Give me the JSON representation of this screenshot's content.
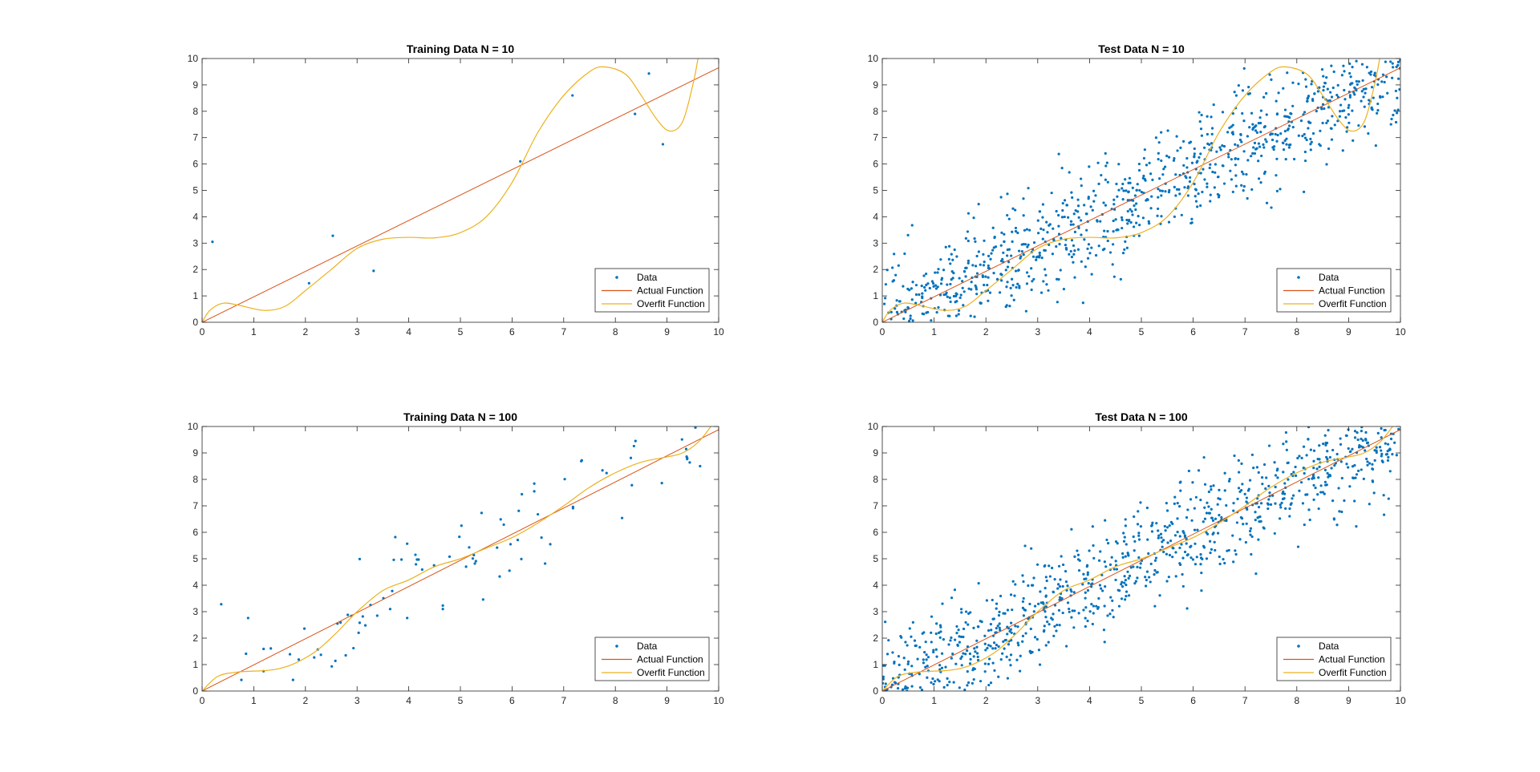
{
  "colors": {
    "data": "#0072BD",
    "actual": "#D95319",
    "overfit": "#EDB120",
    "axis": "#262626"
  },
  "legend_labels": [
    "Data",
    "Actual Function",
    "Overfit Function"
  ],
  "chart_data": [
    {
      "type": "scatter",
      "title": "Training Data N = 10",
      "xlim": [
        0,
        10
      ],
      "ylim": [
        0,
        10
      ],
      "xticks": [
        "0",
        "1",
        "2",
        "3",
        "4",
        "5",
        "6",
        "7",
        "8",
        "9",
        "10"
      ],
      "yticks": [
        "0",
        "1",
        "2",
        "3",
        "4",
        "5",
        "6",
        "7",
        "8",
        "9",
        "10"
      ],
      "legend_placement": "bottom-right",
      "actual_function": {
        "x": [
          0,
          10
        ],
        "y": [
          0,
          9.65
        ]
      },
      "overfit_function": {
        "x": [
          0,
          0.15,
          0.4,
          0.7,
          1.2,
          1.6,
          2,
          2.5,
          3,
          3.5,
          4,
          4.5,
          5,
          5.5,
          6,
          6.5,
          7,
          7.5,
          7.8,
          8.2,
          8.5,
          8.8,
          9.05,
          9.3,
          9.5,
          9.6
        ],
        "y": [
          0,
          0.45,
          0.72,
          0.65,
          0.45,
          0.6,
          1.2,
          2.0,
          2.8,
          3.15,
          3.22,
          3.2,
          3.4,
          4.0,
          5.3,
          7.2,
          8.6,
          9.5,
          9.68,
          9.4,
          8.6,
          7.7,
          7.25,
          7.6,
          9.0,
          10.0
        ]
      },
      "points": {
        "x": [
          0.2,
          2.07,
          2.53,
          3.32,
          6.16,
          7.17,
          8.38,
          8.65,
          8.92
        ],
        "y": [
          3.05,
          1.48,
          3.28,
          1.95,
          6.1,
          8.6,
          7.9,
          9.43,
          6.75
        ]
      }
    },
    {
      "type": "scatter",
      "title": "Test Data N = 10",
      "xlim": [
        0,
        10
      ],
      "ylim": [
        0,
        10
      ],
      "xticks": [
        "0",
        "1",
        "2",
        "3",
        "4",
        "5",
        "6",
        "7",
        "8",
        "9",
        "10"
      ],
      "yticks": [
        "0",
        "1",
        "2",
        "3",
        "4",
        "5",
        "6",
        "7",
        "8",
        "9",
        "10"
      ],
      "legend_placement": "bottom-right",
      "actual_function": {
        "x": [
          0,
          10
        ],
        "y": [
          0,
          9.65
        ]
      },
      "overfit_function": {
        "x": [
          0,
          0.15,
          0.4,
          0.7,
          1.2,
          1.6,
          2,
          2.5,
          3,
          3.5,
          4,
          4.5,
          5,
          5.5,
          6,
          6.5,
          7,
          7.5,
          7.8,
          8.2,
          8.5,
          8.8,
          9.05,
          9.3,
          9.5,
          9.6
        ],
        "y": [
          0,
          0.45,
          0.72,
          0.65,
          0.45,
          0.6,
          1.2,
          2.0,
          2.8,
          3.15,
          3.22,
          3.2,
          3.4,
          4.0,
          5.3,
          7.2,
          8.6,
          9.5,
          9.68,
          9.4,
          8.6,
          7.7,
          7.25,
          7.6,
          9.0,
          10.0
        ]
      },
      "points_generated": {
        "n": 1000,
        "x_range": [
          0,
          10
        ],
        "slope": 0.965,
        "noise_sd": 1.0,
        "seed": 7
      }
    },
    {
      "type": "scatter",
      "title": "Training Data N = 100",
      "xlim": [
        0,
        10
      ],
      "ylim": [
        0,
        10
      ],
      "xticks": [
        "0",
        "1",
        "2",
        "3",
        "4",
        "5",
        "6",
        "7",
        "8",
        "9",
        "10"
      ],
      "yticks": [
        "0",
        "1",
        "2",
        "3",
        "4",
        "5",
        "6",
        "7",
        "8",
        "9",
        "10"
      ],
      "legend_placement": "bottom-right",
      "actual_function": {
        "x": [
          0,
          10
        ],
        "y": [
          0,
          9.88
        ]
      },
      "overfit_function": {
        "x": [
          0,
          0.3,
          0.7,
          1.2,
          1.5,
          1.8,
          2.2,
          2.6,
          3,
          3.5,
          4,
          4.5,
          5,
          5.5,
          6,
          6.5,
          7,
          7.5,
          8,
          8.5,
          9,
          9.3,
          9.6,
          9.85
        ],
        "y": [
          0,
          0.55,
          0.72,
          0.77,
          0.85,
          1.05,
          1.5,
          2.2,
          3.0,
          3.8,
          4.2,
          4.7,
          5.0,
          5.4,
          5.8,
          6.35,
          7.0,
          7.7,
          8.25,
          8.65,
          8.85,
          9.0,
          9.4,
          10.0
        ]
      },
      "points": {
        "x": [
          0.37,
          0.76,
          0.85,
          0.89,
          1.19,
          1.19,
          1.33,
          1.7,
          1.76,
          1.87,
          1.98,
          2.17,
          2.24,
          2.3,
          2.51,
          2.58,
          2.62,
          2.68,
          2.78,
          2.82,
          2.89,
          2.93,
          3.03,
          3.05,
          3.05,
          3.11,
          3.16,
          3.26,
          3.39,
          3.51,
          3.64,
          3.68,
          3.71,
          3.74,
          3.86,
          3.97,
          3.97,
          4.13,
          4.14,
          4.16,
          4.19,
          4.26,
          4.49,
          4.66,
          4.66,
          4.79,
          4.98,
          5.02,
          5.11,
          5.17,
          5.24,
          5.26,
          5.28,
          5.3,
          5.41,
          5.44,
          5.71,
          5.76,
          5.78,
          5.84,
          5.95,
          5.97,
          6.11,
          6.13,
          6.18,
          6.19,
          6.43,
          6.43,
          6.5,
          6.57,
          6.64,
          6.74,
          7.02,
          7.18,
          7.18,
          7.34,
          7.35,
          7.75,
          7.83,
          8.13,
          8.3,
          8.32,
          8.36,
          8.39,
          8.9,
          9.29,
          9.37,
          9.38,
          9.39,
          9.39,
          9.44,
          9.55,
          9.64
        ],
        "y": [
          3.28,
          0.42,
          1.41,
          2.76,
          1.59,
          0.75,
          1.61,
          1.39,
          0.42,
          1.19,
          2.36,
          1.27,
          1.57,
          1.37,
          0.93,
          1.14,
          2.55,
          2.59,
          1.35,
          2.88,
          2.84,
          1.62,
          2.2,
          4.99,
          2.58,
          2.82,
          2.48,
          3.25,
          2.85,
          3.51,
          3.1,
          3.78,
          4.96,
          5.82,
          4.97,
          5.57,
          2.76,
          5.15,
          4.79,
          4.97,
          4.97,
          4.59,
          4.75,
          3.23,
          3.1,
          5.08,
          5.83,
          6.25,
          4.7,
          5.43,
          5.01,
          5.14,
          4.82,
          4.91,
          6.73,
          3.46,
          5.42,
          4.33,
          6.49,
          6.29,
          4.55,
          5.55,
          5.71,
          6.81,
          4.99,
          7.44,
          7.84,
          7.55,
          6.68,
          5.8,
          4.82,
          5.55,
          8.01,
          6.96,
          6.91,
          8.69,
          8.72,
          8.34,
          8.24,
          6.54,
          8.81,
          7.78,
          9.26,
          9.45,
          7.86,
          9.51,
          9.15,
          8.86,
          8.81,
          8.77,
          8.64,
          9.96,
          8.5
        ]
      }
    },
    {
      "type": "scatter",
      "title": "Test Data N = 100",
      "xlim": [
        0,
        10
      ],
      "ylim": [
        0,
        10
      ],
      "xticks": [
        "0",
        "1",
        "2",
        "3",
        "4",
        "5",
        "6",
        "7",
        "8",
        "9",
        "10"
      ],
      "yticks": [
        "0",
        "1",
        "2",
        "3",
        "4",
        "5",
        "6",
        "7",
        "8",
        "9",
        "10"
      ],
      "legend_placement": "bottom-right",
      "actual_function": {
        "x": [
          0,
          10
        ],
        "y": [
          0,
          9.88
        ]
      },
      "overfit_function": {
        "x": [
          0,
          0.3,
          0.7,
          1.2,
          1.5,
          1.8,
          2.2,
          2.6,
          3,
          3.5,
          4,
          4.5,
          5,
          5.5,
          6,
          6.5,
          7,
          7.5,
          8,
          8.5,
          9,
          9.3,
          9.6,
          9.85
        ],
        "y": [
          0,
          0.55,
          0.72,
          0.77,
          0.85,
          1.05,
          1.5,
          2.2,
          3.0,
          3.8,
          4.2,
          4.7,
          5.0,
          5.4,
          5.8,
          6.35,
          7.0,
          7.7,
          8.25,
          8.65,
          8.85,
          9.0,
          9.4,
          10.0
        ]
      },
      "points_generated": {
        "n": 1000,
        "x_range": [
          0,
          10
        ],
        "slope": 0.988,
        "noise_sd": 1.0,
        "seed": 13
      }
    }
  ]
}
